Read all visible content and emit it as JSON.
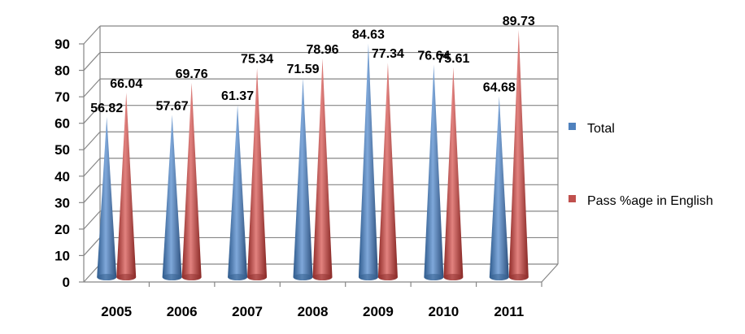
{
  "chart_data": {
    "type": "bar",
    "categories": [
      "2005",
      "2006",
      "2007",
      "2008",
      "2009",
      "2010",
      "2011"
    ],
    "series": [
      {
        "name": "Total",
        "values": [
          56.82,
          57.67,
          61.37,
          71.59,
          84.63,
          76.64,
          64.68
        ],
        "color": "#4F81BD"
      },
      {
        "name": "Pass %age in English",
        "values": [
          66.04,
          69.76,
          75.34,
          78.96,
          77.34,
          75.61,
          89.73
        ],
        "color": "#C0504D"
      }
    ],
    "data_labels": [
      [
        "56.82",
        "57.67",
        "61.37",
        "71.59",
        "84.63",
        "76.64",
        "64.68"
      ],
      [
        "66.04",
        "69.76",
        "75.34",
        "78.96",
        "77.34",
        "75.61",
        "89.73"
      ]
    ],
    "y_ticks": [
      "0",
      "10",
      "20",
      "30",
      "40",
      "50",
      "60",
      "70",
      "80",
      "90"
    ],
    "ylim": [
      0,
      90
    ],
    "mark_shape": "3d-cone",
    "grid": true,
    "legend_position": "right",
    "title": "",
    "xlabel": "",
    "ylabel": ""
  }
}
